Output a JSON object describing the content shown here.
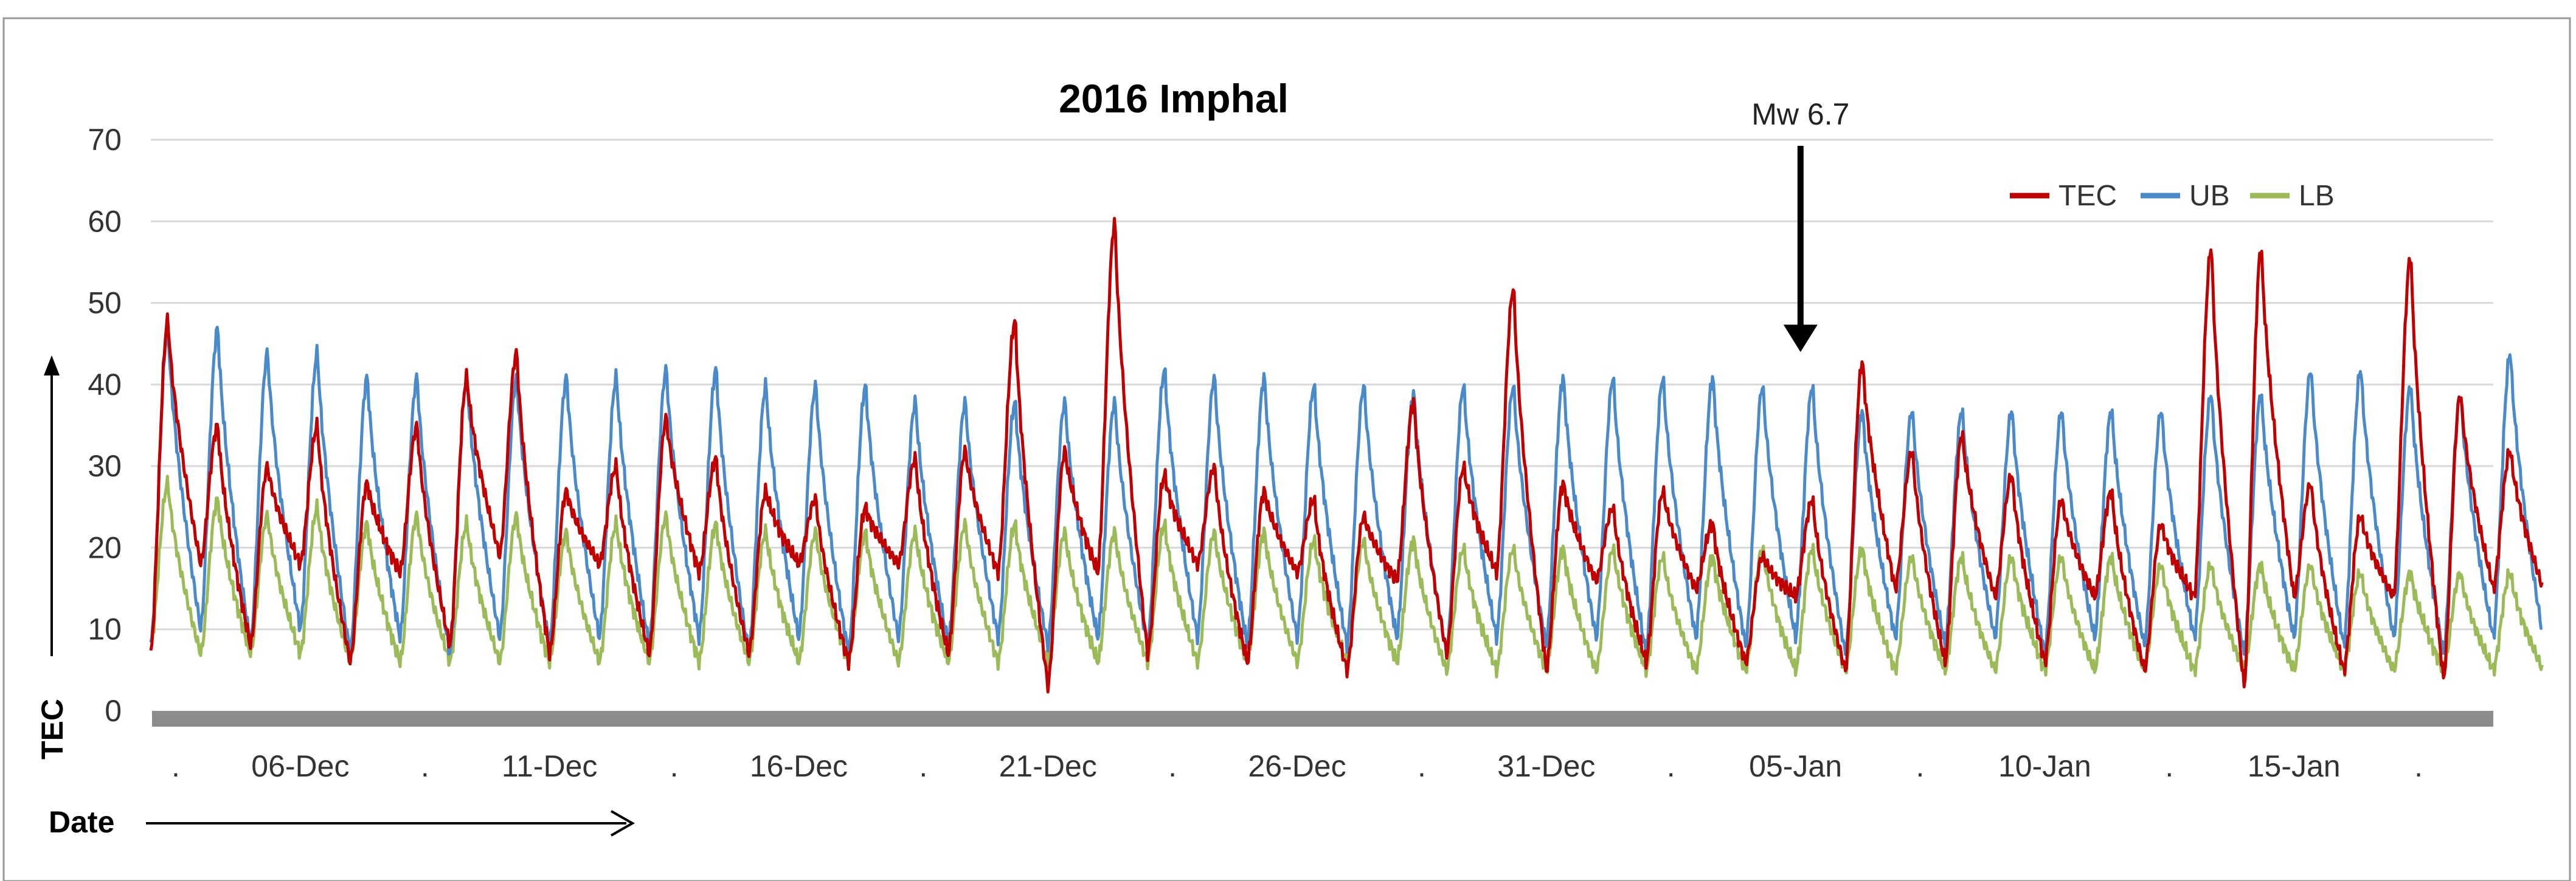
{
  "chart_data": {
    "type": "line",
    "title": "2016 Imphal",
    "xlabel": "Date",
    "ylabel": "TEC",
    "ylim": [
      0,
      70
    ],
    "yticks": [
      "0",
      "10",
      "20",
      "30",
      "40",
      "50",
      "60",
      "70"
    ],
    "xlim": [
      0,
      47
    ],
    "x_unit": "days from 03-Dec",
    "xticks": [
      {
        "label": "06-Dec",
        "x": 3
      },
      {
        "label": "11-Dec",
        "x": 8
      },
      {
        "label": "16-Dec",
        "x": 13
      },
      {
        "label": "21-Dec",
        "x": 18
      },
      {
        "label": "26-Dec",
        "x": 23
      },
      {
        "label": "31-Dec",
        "x": 28
      },
      {
        "label": "05-Jan",
        "x": 33
      },
      {
        "label": "10-Jan",
        "x": 38
      },
      {
        "label": "15-Jan",
        "x": 43
      }
    ],
    "minor_tick_marks": ".",
    "legend_position": "top-right",
    "series": [
      {
        "name": "TEC",
        "color": "#c00000",
        "daily_peaks": [
          48,
          35,
          30,
          35,
          28,
          35,
          41,
          44,
          27,
          30,
          36,
          31,
          27,
          26,
          25,
          31,
          32,
          48,
          32,
          60,
          29,
          30,
          27,
          26,
          24,
          38,
          30,
          52,
          28,
          25,
          27,
          23,
          19,
          26,
          43,
          32,
          34,
          29,
          26,
          27,
          23,
          57,
          57,
          28,
          24,
          56,
          39,
          32
        ],
        "daily_minima": [
          7,
          18,
          8,
          18,
          6,
          17,
          8,
          19,
          7,
          18,
          7,
          17,
          7,
          18,
          6,
          18,
          7,
          17,
          3,
          17,
          7,
          18,
          6,
          17,
          5,
          16,
          7,
          17,
          5,
          16,
          6,
          15,
          6,
          14,
          5,
          15,
          6,
          14,
          6,
          14,
          5,
          14,
          3,
          14,
          5,
          14,
          4,
          15
        ]
      },
      {
        "name": "UB",
        "color": "#4a8ac8",
        "daily_peaks": [
          47,
          47,
          44,
          44,
          41,
          41,
          41,
          41,
          41,
          41,
          42,
          42,
          40,
          40,
          40,
          38,
          38,
          38,
          38,
          38,
          42,
          41,
          41,
          40,
          40,
          39,
          40,
          40,
          41,
          41,
          41,
          41,
          40,
          40,
          37,
          37,
          37,
          37,
          37,
          37,
          37,
          39,
          39,
          42,
          42,
          40,
          39,
          44
        ],
        "daily_minima": [
          8,
          10,
          8,
          10,
          7,
          9,
          7,
          9,
          8,
          9,
          8,
          9,
          7,
          9,
          7,
          9,
          8,
          9,
          8,
          9,
          8,
          9,
          8,
          9,
          8,
          9,
          7,
          9,
          8,
          9,
          7,
          9,
          8,
          9,
          7,
          9,
          8,
          9,
          7,
          9,
          8,
          9,
          7,
          9,
          8,
          9,
          7,
          9
        ]
      },
      {
        "name": "LB",
        "color": "#9bbb59",
        "daily_peaks": [
          28,
          26,
          24,
          25,
          23,
          24,
          23,
          24,
          22,
          23,
          24,
          23,
          22,
          22,
          22,
          22,
          23,
          23,
          22,
          22,
          23,
          22,
          22,
          21,
          21,
          21,
          20,
          20,
          20,
          20,
          19,
          19,
          20,
          20,
          20,
          19,
          19,
          19,
          19,
          19,
          18,
          18,
          18,
          18,
          17,
          17,
          17,
          17
        ],
        "daily_minima": [
          8,
          7,
          7,
          7,
          6,
          6,
          6,
          6,
          6,
          6,
          6,
          6,
          6,
          6,
          6,
          6,
          6,
          6,
          6,
          6,
          6,
          6,
          6,
          6,
          6,
          6,
          5,
          5,
          5,
          5,
          5,
          5,
          5,
          5,
          5,
          5,
          5,
          5,
          5,
          5,
          5,
          5,
          5,
          5,
          5,
          5,
          5,
          5
        ]
      }
    ],
    "annotations": [
      {
        "text": "Mw 6.7",
        "x": 33.1,
        "y_arrow_tip": 41,
        "type": "down-arrow"
      }
    ]
  }
}
